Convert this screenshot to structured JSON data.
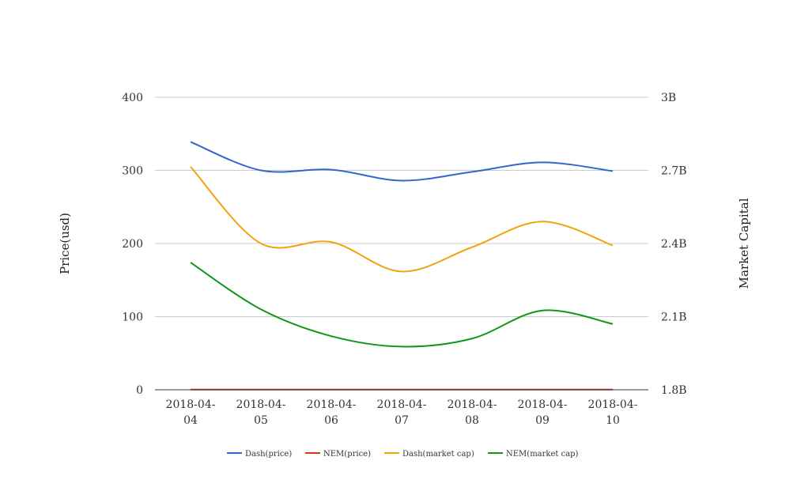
{
  "chart_data": {
    "type": "line",
    "title": "",
    "categories": [
      "2018-04-04",
      "2018-04-05",
      "2018-04-06",
      "2018-04-07",
      "2018-04-08",
      "2018-04-09",
      "2018-04-10"
    ],
    "category_labels": [
      [
        "2018-04-",
        "04"
      ],
      [
        "2018-04-",
        "05"
      ],
      [
        "2018-04-",
        "06"
      ],
      [
        "2018-04-",
        "07"
      ],
      [
        "2018-04-",
        "08"
      ],
      [
        "2018-04-",
        "09"
      ],
      [
        "2018-04-",
        "10"
      ]
    ],
    "y_left": {
      "label": "Price(usd)",
      "ylim": [
        0,
        400
      ],
      "ticks": [
        0,
        100,
        200,
        300,
        400
      ],
      "tick_labels": [
        "0",
        "100",
        "200",
        "300",
        "400"
      ]
    },
    "y_right": {
      "label": "Market Capital",
      "ylim": [
        1800000000,
        3000000000
      ],
      "ticks": [
        1800000000,
        2100000000,
        2400000000,
        2700000000,
        3000000000
      ],
      "tick_labels": [
        "1.8B",
        "2.1B",
        "2.4B",
        "2.7B",
        "3B"
      ]
    },
    "grid": true,
    "legend_position": "bottom",
    "series": [
      {
        "name": "Dash(price)",
        "axis": "left",
        "color": "#3366cc",
        "values": [
          339,
          300,
          301,
          286,
          298,
          311,
          299
        ]
      },
      {
        "name": "NEM(price)",
        "axis": "left",
        "color": "#dc3912",
        "values": [
          0.3,
          0.27,
          0.26,
          0.25,
          0.27,
          0.29,
          0.28
        ]
      },
      {
        "name": "Dash(market cap)",
        "axis": "right",
        "color": "#f0a30a",
        "values": [
          2715000000,
          2400000000,
          2406000000,
          2285000000,
          2385000000,
          2490000000,
          2392000000
        ]
      },
      {
        "name": "NEM(market cap)",
        "axis": "right",
        "color": "#109618",
        "values": [
          2322000000,
          2130000000,
          2020000000,
          1977000000,
          2010000000,
          2125000000,
          2070000000
        ]
      }
    ]
  }
}
